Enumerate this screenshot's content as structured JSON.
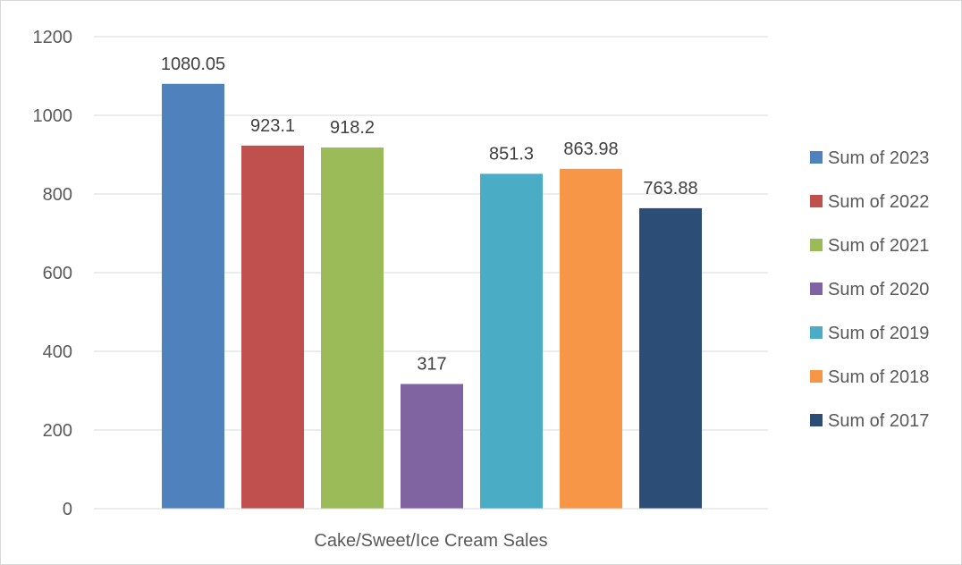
{
  "chart_data": {
    "type": "bar",
    "categories": [
      "Cake/Sweet/Ice Cream Sales"
    ],
    "series": [
      {
        "name": "Sum of 2023",
        "values": [
          1080.05
        ],
        "label": "1080.05",
        "color": "#4f81bd"
      },
      {
        "name": "Sum of 2022",
        "values": [
          923.1
        ],
        "label": "923.1",
        "color": "#c0504d"
      },
      {
        "name": "Sum of 2021",
        "values": [
          918.2
        ],
        "label": "918.2",
        "color": "#9bbb59"
      },
      {
        "name": "Sum of 2020",
        "values": [
          317
        ],
        "label": "317",
        "color": "#8064a2"
      },
      {
        "name": "Sum of 2019",
        "values": [
          851.3
        ],
        "label": "851.3",
        "color": "#4bacc6"
      },
      {
        "name": "Sum of 2018",
        "values": [
          863.98
        ],
        "label": "863.98",
        "color": "#f79646"
      },
      {
        "name": "Sum of 2017",
        "values": [
          763.88
        ],
        "label": "763.88",
        "color": "#2c4d75"
      }
    ],
    "title": "",
    "xlabel": "",
    "ylabel": "",
    "ylim": [
      0,
      1200
    ],
    "yticks": [
      "0",
      "200",
      "400",
      "600",
      "800",
      "1000",
      "1200"
    ],
    "grid": true,
    "legend_position": "right",
    "gridline_color": "#d9d9d9"
  }
}
